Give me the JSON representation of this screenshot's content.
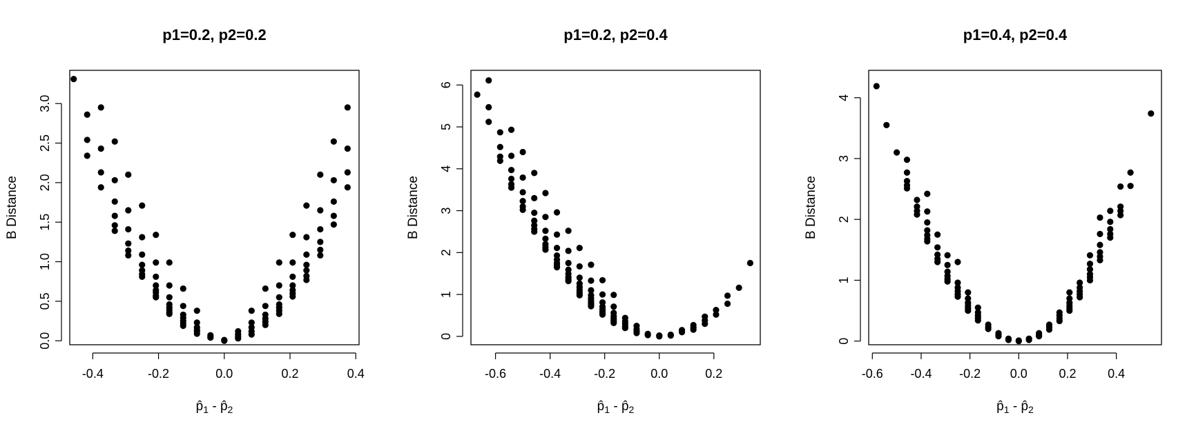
{
  "chart_data": [
    {
      "type": "scatter",
      "title": "p1=0.2, p2=0.2",
      "xlabel": "p̂1 - p̂2",
      "ylabel": "B Distance",
      "xlim": [
        -0.47,
        0.41
      ],
      "ylim": [
        -0.05,
        3.42
      ],
      "xticks": [
        -0.4,
        -0.2,
        0.0,
        0.2,
        0.4
      ],
      "xtick_labels": [
        "-0.4",
        "-0.2",
        "0.0",
        "0.2",
        "0.4"
      ],
      "yticks": [
        0.0,
        0.5,
        1.0,
        1.5,
        2.0,
        2.5,
        3.0
      ],
      "ytick_labels": [
        "0.0",
        "0.5",
        "1.0",
        "1.5",
        "2.0",
        "2.5",
        "3.0"
      ],
      "points": [
        [
          -0.458,
          3.31
        ],
        [
          -0.417,
          2.86
        ],
        [
          -0.417,
          2.54
        ],
        [
          -0.417,
          2.34
        ],
        [
          -0.375,
          2.95
        ],
        [
          -0.375,
          2.43
        ],
        [
          -0.375,
          2.13
        ],
        [
          -0.375,
          1.94
        ],
        [
          -0.333,
          2.52
        ],
        [
          -0.333,
          2.03
        ],
        [
          -0.333,
          1.76
        ],
        [
          -0.333,
          1.58
        ],
        [
          -0.333,
          1.46
        ],
        [
          -0.333,
          1.39
        ],
        [
          -0.292,
          2.1
        ],
        [
          -0.292,
          1.65
        ],
        [
          -0.292,
          1.41
        ],
        [
          -0.292,
          1.23
        ],
        [
          -0.292,
          1.14
        ],
        [
          -0.292,
          1.08
        ],
        [
          -0.25,
          1.71
        ],
        [
          -0.25,
          1.31
        ],
        [
          -0.25,
          1.09
        ],
        [
          -0.25,
          0.96
        ],
        [
          -0.25,
          0.89
        ],
        [
          -0.25,
          0.84
        ],
        [
          -0.25,
          0.81
        ],
        [
          -0.208,
          1.34
        ],
        [
          -0.208,
          0.99
        ],
        [
          -0.208,
          0.81
        ],
        [
          -0.208,
          0.7
        ],
        [
          -0.208,
          0.64
        ],
        [
          -0.208,
          0.61
        ],
        [
          -0.208,
          0.57
        ],
        [
          -0.208,
          0.55
        ],
        [
          -0.167,
          0.99
        ],
        [
          -0.167,
          0.7
        ],
        [
          -0.167,
          0.55
        ],
        [
          -0.167,
          0.46
        ],
        [
          -0.167,
          0.42
        ],
        [
          -0.167,
          0.39
        ],
        [
          -0.167,
          0.36
        ],
        [
          -0.167,
          0.34
        ],
        [
          -0.125,
          0.66
        ],
        [
          -0.125,
          0.44
        ],
        [
          -0.125,
          0.33
        ],
        [
          -0.125,
          0.29
        ],
        [
          -0.125,
          0.25
        ],
        [
          -0.125,
          0.22
        ],
        [
          -0.125,
          0.19
        ],
        [
          -0.083,
          0.38
        ],
        [
          -0.083,
          0.23
        ],
        [
          -0.083,
          0.17
        ],
        [
          -0.083,
          0.14
        ],
        [
          -0.083,
          0.12
        ],
        [
          -0.083,
          0.09
        ],
        [
          -0.042,
          0.07
        ],
        [
          -0.042,
          0.05
        ],
        [
          -0.042,
          0.04
        ],
        [
          0.0,
          0.0
        ],
        [
          0.0,
          0.01
        ],
        [
          0.042,
          0.12
        ],
        [
          0.042,
          0.08
        ],
        [
          0.042,
          0.05
        ],
        [
          0.042,
          0.03
        ],
        [
          0.083,
          0.38
        ],
        [
          0.083,
          0.23
        ],
        [
          0.083,
          0.17
        ],
        [
          0.083,
          0.12
        ],
        [
          0.083,
          0.08
        ],
        [
          0.125,
          0.66
        ],
        [
          0.125,
          0.44
        ],
        [
          0.125,
          0.33
        ],
        [
          0.125,
          0.28
        ],
        [
          0.125,
          0.24
        ],
        [
          0.125,
          0.2
        ],
        [
          0.167,
          0.99
        ],
        [
          0.167,
          0.7
        ],
        [
          0.167,
          0.55
        ],
        [
          0.167,
          0.46
        ],
        [
          0.167,
          0.42
        ],
        [
          0.167,
          0.38
        ],
        [
          0.167,
          0.34
        ],
        [
          0.208,
          1.34
        ],
        [
          0.208,
          0.99
        ],
        [
          0.208,
          0.81
        ],
        [
          0.208,
          0.7
        ],
        [
          0.208,
          0.64
        ],
        [
          0.208,
          0.6
        ],
        [
          0.208,
          0.56
        ],
        [
          0.25,
          1.71
        ],
        [
          0.25,
          1.31
        ],
        [
          0.25,
          1.09
        ],
        [
          0.25,
          0.96
        ],
        [
          0.25,
          0.89
        ],
        [
          0.25,
          0.82
        ],
        [
          0.25,
          0.77
        ],
        [
          0.292,
          2.1
        ],
        [
          0.292,
          1.65
        ],
        [
          0.292,
          1.41
        ],
        [
          0.292,
          1.25
        ],
        [
          0.292,
          1.15
        ],
        [
          0.292,
          1.08
        ],
        [
          0.333,
          2.52
        ],
        [
          0.333,
          2.03
        ],
        [
          0.333,
          1.76
        ],
        [
          0.333,
          1.58
        ],
        [
          0.333,
          1.47
        ],
        [
          0.375,
          2.95
        ],
        [
          0.375,
          2.43
        ],
        [
          0.375,
          2.13
        ],
        [
          0.375,
          1.94
        ]
      ]
    },
    {
      "type": "scatter",
      "title": "p1=0.2, p2=0.4",
      "xlabel": "p̂1 - p̂2",
      "ylabel": "B Distance",
      "xlim": [
        -0.69,
        0.37
      ],
      "ylim": [
        -0.2,
        6.35
      ],
      "xticks": [
        -0.6,
        -0.4,
        -0.2,
        0.0,
        0.2
      ],
      "xtick_labels": [
        "-0.6",
        "-0.4",
        "-0.2",
        "0.0",
        "0.2"
      ],
      "yticks": [
        0,
        1,
        2,
        3,
        4,
        5,
        6
      ],
      "ytick_labels": [
        "0",
        "1",
        "2",
        "3",
        "4",
        "5",
        "6"
      ],
      "points": [
        [
          -0.667,
          5.77
        ],
        [
          -0.625,
          6.11
        ],
        [
          -0.625,
          5.47
        ],
        [
          -0.625,
          5.12
        ],
        [
          -0.583,
          4.87
        ],
        [
          -0.583,
          4.52
        ],
        [
          -0.583,
          4.29
        ],
        [
          -0.583,
          4.19
        ],
        [
          -0.542,
          4.93
        ],
        [
          -0.542,
          4.31
        ],
        [
          -0.542,
          3.97
        ],
        [
          -0.542,
          3.76
        ],
        [
          -0.542,
          3.63
        ],
        [
          -0.542,
          3.55
        ],
        [
          -0.5,
          4.4
        ],
        [
          -0.5,
          3.79
        ],
        [
          -0.5,
          3.44
        ],
        [
          -0.5,
          3.23
        ],
        [
          -0.5,
          3.1
        ],
        [
          -0.5,
          3.02
        ],
        [
          -0.458,
          3.9
        ],
        [
          -0.458,
          3.3
        ],
        [
          -0.458,
          2.95
        ],
        [
          -0.458,
          2.76
        ],
        [
          -0.458,
          2.65
        ],
        [
          -0.458,
          2.56
        ],
        [
          -0.458,
          2.5
        ],
        [
          -0.417,
          3.42
        ],
        [
          -0.417,
          2.85
        ],
        [
          -0.417,
          2.52
        ],
        [
          -0.417,
          2.33
        ],
        [
          -0.417,
          2.2
        ],
        [
          -0.417,
          2.13
        ],
        [
          -0.417,
          2.07
        ],
        [
          -0.375,
          2.96
        ],
        [
          -0.375,
          2.43
        ],
        [
          -0.375,
          2.11
        ],
        [
          -0.375,
          1.93
        ],
        [
          -0.375,
          1.83
        ],
        [
          -0.375,
          1.75
        ],
        [
          -0.375,
          1.7
        ],
        [
          -0.375,
          1.65
        ],
        [
          -0.333,
          2.52
        ],
        [
          -0.333,
          2.04
        ],
        [
          -0.333,
          1.75
        ],
        [
          -0.333,
          1.59
        ],
        [
          -0.333,
          1.49
        ],
        [
          -0.333,
          1.41
        ],
        [
          -0.333,
          1.36
        ],
        [
          -0.333,
          1.32
        ],
        [
          -0.292,
          2.11
        ],
        [
          -0.292,
          1.67
        ],
        [
          -0.292,
          1.4
        ],
        [
          -0.292,
          1.26
        ],
        [
          -0.292,
          1.18
        ],
        [
          -0.292,
          1.11
        ],
        [
          -0.292,
          1.06
        ],
        [
          -0.292,
          1.02
        ],
        [
          -0.292,
          0.98
        ],
        [
          -0.25,
          1.71
        ],
        [
          -0.25,
          1.33
        ],
        [
          -0.25,
          1.1
        ],
        [
          -0.25,
          0.98
        ],
        [
          -0.25,
          0.91
        ],
        [
          -0.25,
          0.85
        ],
        [
          -0.25,
          0.8
        ],
        [
          -0.25,
          0.76
        ],
        [
          -0.25,
          0.72
        ],
        [
          -0.208,
          1.34
        ],
        [
          -0.208,
          1.0
        ],
        [
          -0.208,
          0.81
        ],
        [
          -0.208,
          0.71
        ],
        [
          -0.208,
          0.65
        ],
        [
          -0.208,
          0.6
        ],
        [
          -0.208,
          0.56
        ],
        [
          -0.208,
          0.52
        ],
        [
          -0.167,
          0.99
        ],
        [
          -0.167,
          0.71
        ],
        [
          -0.167,
          0.56
        ],
        [
          -0.167,
          0.48
        ],
        [
          -0.167,
          0.43
        ],
        [
          -0.167,
          0.39
        ],
        [
          -0.167,
          0.35
        ],
        [
          -0.167,
          0.32
        ],
        [
          -0.125,
          0.44
        ],
        [
          -0.125,
          0.36
        ],
        [
          -0.125,
          0.3
        ],
        [
          -0.125,
          0.24
        ],
        [
          -0.125,
          0.2
        ],
        [
          -0.083,
          0.25
        ],
        [
          -0.083,
          0.17
        ],
        [
          -0.083,
          0.12
        ],
        [
          -0.083,
          0.08
        ],
        [
          -0.042,
          0.06
        ],
        [
          -0.042,
          0.03
        ],
        [
          0.0,
          0.0
        ],
        [
          0.0,
          0.02
        ],
        [
          0.042,
          0.04
        ],
        [
          0.042,
          0.02
        ],
        [
          0.083,
          0.15
        ],
        [
          0.083,
          0.1
        ],
        [
          0.125,
          0.27
        ],
        [
          0.125,
          0.21
        ],
        [
          0.125,
          0.16
        ],
        [
          0.167,
          0.47
        ],
        [
          0.167,
          0.38
        ],
        [
          0.167,
          0.3
        ],
        [
          0.208,
          0.63
        ],
        [
          0.208,
          0.52
        ],
        [
          0.25,
          0.97
        ],
        [
          0.25,
          0.78
        ],
        [
          0.292,
          1.16
        ],
        [
          0.333,
          1.75
        ]
      ]
    },
    {
      "type": "scatter",
      "title": "p1=0.4, p2=0.4",
      "xlabel": "p̂1 - p̂2",
      "ylabel": "B Distance",
      "xlim": [
        -0.615,
        0.585
      ],
      "ylim": [
        -0.06,
        4.45
      ],
      "xticks": [
        -0.6,
        -0.4,
        -0.2,
        0.0,
        0.2,
        0.4
      ],
      "xtick_labels": [
        "-0.6",
        "-0.4",
        "-0.2",
        "0.0",
        "0.2",
        "0.4"
      ],
      "yticks": [
        0,
        1,
        2,
        3,
        4
      ],
      "ytick_labels": [
        "0",
        "1",
        "2",
        "3",
        "4"
      ],
      "points": [
        [
          -0.583,
          4.19
        ],
        [
          -0.542,
          3.55
        ],
        [
          -0.5,
          3.1
        ],
        [
          -0.458,
          2.98
        ],
        [
          -0.458,
          2.77
        ],
        [
          -0.458,
          2.63
        ],
        [
          -0.458,
          2.56
        ],
        [
          -0.458,
          2.51
        ],
        [
          -0.417,
          2.32
        ],
        [
          -0.417,
          2.21
        ],
        [
          -0.417,
          2.14
        ],
        [
          -0.417,
          2.08
        ],
        [
          -0.375,
          2.42
        ],
        [
          -0.375,
          2.13
        ],
        [
          -0.375,
          1.95
        ],
        [
          -0.375,
          1.82
        ],
        [
          -0.375,
          1.74
        ],
        [
          -0.375,
          1.68
        ],
        [
          -0.375,
          1.64
        ],
        [
          -0.333,
          1.75
        ],
        [
          -0.333,
          1.54
        ],
        [
          -0.333,
          1.42
        ],
        [
          -0.333,
          1.35
        ],
        [
          -0.333,
          1.3
        ],
        [
          -0.292,
          1.41
        ],
        [
          -0.292,
          1.25
        ],
        [
          -0.292,
          1.14
        ],
        [
          -0.292,
          1.07
        ],
        [
          -0.292,
          1.02
        ],
        [
          -0.292,
          0.98
        ],
        [
          -0.25,
          1.3
        ],
        [
          -0.25,
          0.96
        ],
        [
          -0.25,
          0.88
        ],
        [
          -0.25,
          0.82
        ],
        [
          -0.25,
          0.77
        ],
        [
          -0.25,
          0.73
        ],
        [
          -0.208,
          0.8
        ],
        [
          -0.208,
          0.7
        ],
        [
          -0.208,
          0.63
        ],
        [
          -0.208,
          0.58
        ],
        [
          -0.208,
          0.54
        ],
        [
          -0.208,
          0.5
        ],
        [
          -0.167,
          0.55
        ],
        [
          -0.167,
          0.47
        ],
        [
          -0.167,
          0.42
        ],
        [
          -0.167,
          0.38
        ],
        [
          -0.167,
          0.34
        ],
        [
          -0.125,
          0.27
        ],
        [
          -0.125,
          0.23
        ],
        [
          -0.125,
          0.2
        ],
        [
          -0.083,
          0.13
        ],
        [
          -0.083,
          0.1
        ],
        [
          -0.083,
          0.08
        ],
        [
          -0.042,
          0.04
        ],
        [
          -0.042,
          0.02
        ],
        [
          0.0,
          0.0
        ],
        [
          0.0,
          0.01
        ],
        [
          0.042,
          0.04
        ],
        [
          0.042,
          0.02
        ],
        [
          0.083,
          0.13
        ],
        [
          0.083,
          0.1
        ],
        [
          0.083,
          0.08
        ],
        [
          0.125,
          0.27
        ],
        [
          0.125,
          0.23
        ],
        [
          0.125,
          0.19
        ],
        [
          0.167,
          0.47
        ],
        [
          0.167,
          0.42
        ],
        [
          0.167,
          0.37
        ],
        [
          0.167,
          0.33
        ],
        [
          0.208,
          0.8
        ],
        [
          0.208,
          0.7
        ],
        [
          0.208,
          0.63
        ],
        [
          0.208,
          0.58
        ],
        [
          0.208,
          0.54
        ],
        [
          0.208,
          0.5
        ],
        [
          0.25,
          0.96
        ],
        [
          0.25,
          0.88
        ],
        [
          0.25,
          0.82
        ],
        [
          0.25,
          0.77
        ],
        [
          0.25,
          0.72
        ],
        [
          0.292,
          1.41
        ],
        [
          0.292,
          1.27
        ],
        [
          0.292,
          1.18
        ],
        [
          0.292,
          1.1
        ],
        [
          0.292,
          1.05
        ],
        [
          0.292,
          1.0
        ],
        [
          0.333,
          2.03
        ],
        [
          0.333,
          1.76
        ],
        [
          0.333,
          1.58
        ],
        [
          0.333,
          1.46
        ],
        [
          0.333,
          1.39
        ],
        [
          0.333,
          1.33
        ],
        [
          0.375,
          2.14
        ],
        [
          0.375,
          1.96
        ],
        [
          0.375,
          1.84
        ],
        [
          0.375,
          1.76
        ],
        [
          0.375,
          1.7
        ],
        [
          0.417,
          2.54
        ],
        [
          0.417,
          2.21
        ],
        [
          0.417,
          2.14
        ],
        [
          0.417,
          2.07
        ],
        [
          0.458,
          2.77
        ],
        [
          0.458,
          2.55
        ],
        [
          0.542,
          3.74
        ]
      ]
    }
  ]
}
